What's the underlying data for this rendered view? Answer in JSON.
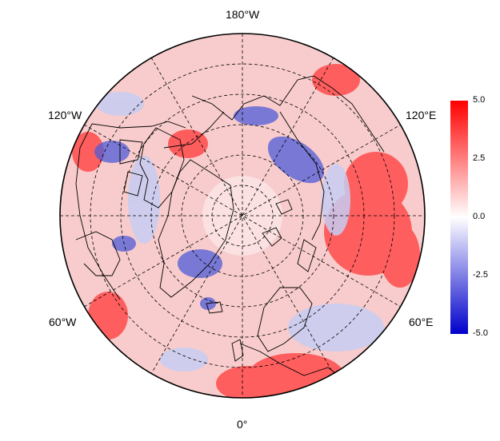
{
  "map": {
    "projection": "north-polar-stereographic",
    "longitude_labels": {
      "top": "180°W",
      "upper_left": "120°W",
      "upper_right": "120°E",
      "lower_left": "60°W",
      "lower_right": "60°E",
      "bottom": "0°"
    },
    "graticule": "dashed",
    "colormap": "bwr"
  },
  "colorbar": {
    "ticks": [
      "5.0",
      "2.5",
      "0.0",
      "-2.5",
      "-5.0"
    ],
    "vmin": -5.0,
    "vmax": 5.0,
    "colors": {
      "high": "#ff0000",
      "mid": "#ffffff",
      "low": "#0000cc"
    }
  }
}
